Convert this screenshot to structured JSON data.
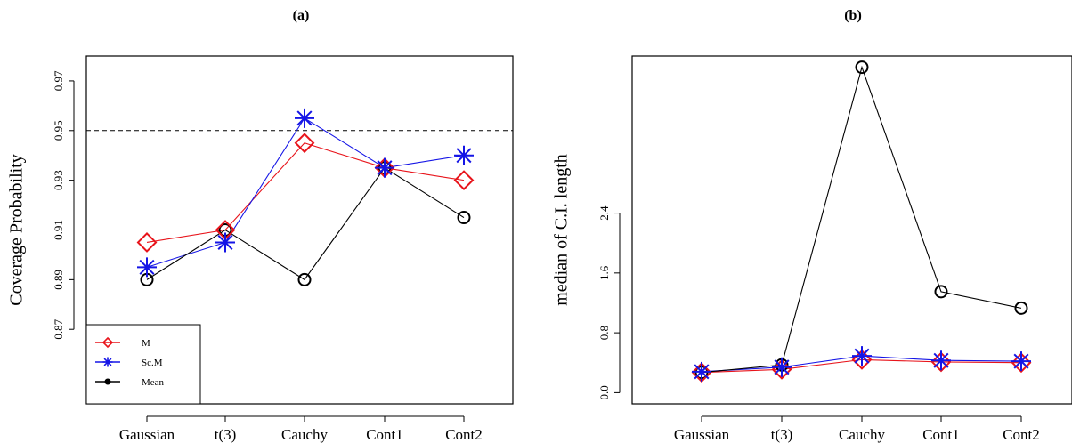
{
  "chart_data": [
    {
      "type": "line",
      "title": "(a)",
      "xlabel": "",
      "ylabel": "Coverage Probability",
      "categories": [
        "Gaussian",
        "t(3)",
        "Cauchy",
        "Cont1",
        "Cont2"
      ],
      "ylim": [
        0.84,
        0.98
      ],
      "yticks": [
        "0.87",
        "0.89",
        "0.91",
        "0.93",
        "0.95",
        "0.97"
      ],
      "reference_line": {
        "y": 0.95,
        "style": "dashed"
      },
      "legend": {
        "placement": "bottom-left",
        "entries": [
          "M",
          "Sc.M",
          "Mean"
        ]
      },
      "series": [
        {
          "name": "M",
          "color": "#e8141b",
          "marker": "diamond",
          "values": [
            0.905,
            0.91,
            0.945,
            0.935,
            0.93
          ]
        },
        {
          "name": "Sc.M",
          "color": "#1515e6",
          "marker": "asterisk",
          "values": [
            0.895,
            0.905,
            0.955,
            0.935,
            0.94
          ]
        },
        {
          "name": "Mean",
          "color": "#000000",
          "marker": "circle",
          "values": [
            0.89,
            0.91,
            0.89,
            0.935,
            0.915
          ]
        }
      ]
    },
    {
      "type": "line",
      "title": "(b)",
      "xlabel": "",
      "ylabel": "median of C.I. length",
      "categories": [
        "Gaussian",
        "t(3)",
        "Cauchy",
        "Cont1",
        "Cont2"
      ],
      "ylim": [
        -0.15,
        4.5
      ],
      "yticks": [
        "0.0",
        "0.8",
        "1.6",
        "2.4"
      ],
      "series": [
        {
          "name": "M",
          "color": "#e8141b",
          "marker": "diamond",
          "values": [
            0.27,
            0.31,
            0.44,
            0.41,
            0.4
          ]
        },
        {
          "name": "Sc.M",
          "color": "#1515e6",
          "marker": "asterisk",
          "values": [
            0.28,
            0.34,
            0.49,
            0.43,
            0.42
          ]
        },
        {
          "name": "Mean",
          "color": "#000000",
          "marker": "circle",
          "values": [
            0.27,
            0.37,
            4.35,
            1.35,
            1.13
          ]
        }
      ]
    }
  ]
}
